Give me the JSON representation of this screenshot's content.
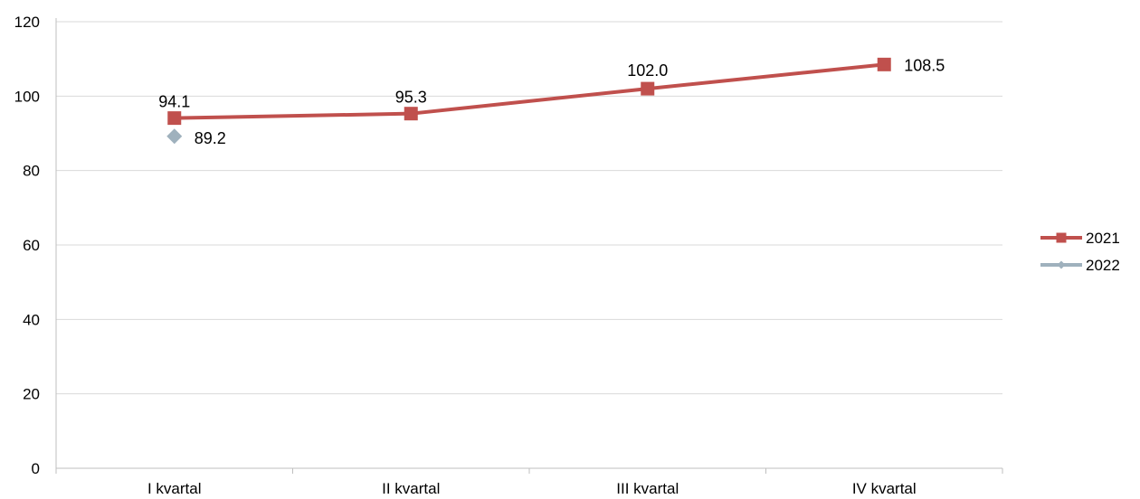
{
  "chart_data": {
    "type": "line",
    "title": "",
    "xlabel": "",
    "ylabel": "",
    "categories": [
      "I kvartal",
      "II kvartal",
      "III kvartal",
      "IV kvartal"
    ],
    "ylim": [
      0,
      120
    ],
    "yticks": [
      "0",
      "20",
      "40",
      "60",
      "80",
      "100",
      "120"
    ],
    "grid": true,
    "legend_position": "right",
    "series": [
      {
        "name": "2021",
        "color": "#c0504d",
        "marker": "square",
        "values": [
          94.1,
          95.3,
          102.0,
          108.5
        ],
        "labels": [
          "94.1",
          "95.3",
          "102.0",
          "108.5"
        ]
      },
      {
        "name": "2022",
        "color": "#9fb1bd",
        "marker": "diamond",
        "values": [
          89.2,
          null,
          null,
          null
        ],
        "labels": [
          "89.2",
          null,
          null,
          null
        ]
      }
    ]
  }
}
